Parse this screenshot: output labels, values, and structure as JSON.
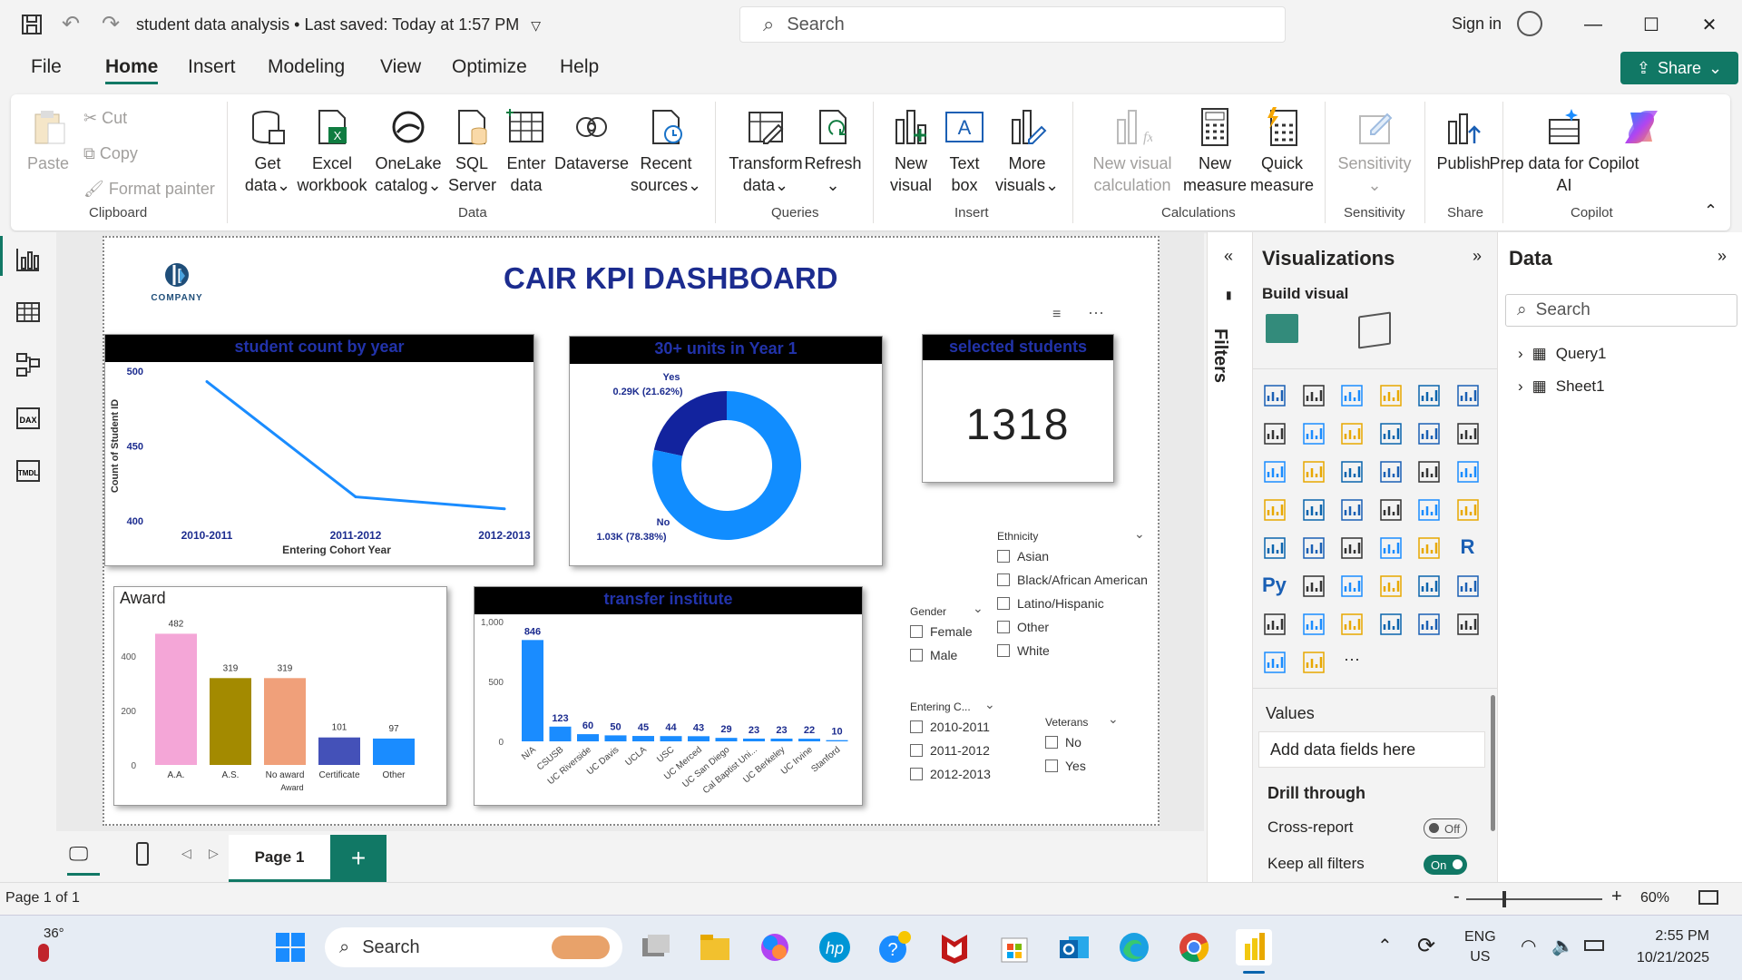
{
  "titlebar": {
    "doc_title": "student data analysis",
    "saved_status": "Last saved: Today at 1:57 PM",
    "search_placeholder": "Search",
    "sign_in": "Sign in"
  },
  "menu": [
    "File",
    "Home",
    "Insert",
    "Modeling",
    "View",
    "Optimize",
    "Help"
  ],
  "share_label": "Share",
  "ribbon": {
    "clipboard": {
      "paste": "Paste",
      "cut": "Cut",
      "copy": "Copy",
      "format_painter": "Format painter",
      "group": "Clipboard"
    },
    "data": {
      "get_data": [
        "Get",
        "data"
      ],
      "excel": [
        "Excel",
        "workbook"
      ],
      "onelake": [
        "OneLake",
        "catalog"
      ],
      "sql": [
        "SQL",
        "Server"
      ],
      "enter": [
        "Enter",
        "data"
      ],
      "dataverse": [
        "Dataverse"
      ],
      "recent": [
        "Recent",
        "sources"
      ],
      "group": "Data"
    },
    "queries": {
      "transform": [
        "Transform",
        "data"
      ],
      "refresh": [
        "Refresh"
      ],
      "group": "Queries"
    },
    "insert": {
      "new_visual": [
        "New",
        "visual"
      ],
      "text_box": [
        "Text",
        "box"
      ],
      "more_visuals": [
        "More",
        "visuals"
      ],
      "group": "Insert"
    },
    "calculations": {
      "new_visual_calc": [
        "New visual",
        "calculation"
      ],
      "new_measure": [
        "New",
        "measure"
      ],
      "quick_measure": [
        "Quick",
        "measure"
      ],
      "group": "Calculations"
    },
    "sensitivity": {
      "label": "Sensitivity",
      "group": "Sensitivity"
    },
    "share": {
      "publish": "Publish",
      "group": "Share"
    },
    "copilot": {
      "prep": [
        "Prep data for Copilot",
        "AI"
      ],
      "group": "Copilot"
    }
  },
  "report": {
    "logo_text": "COMPANY",
    "title": "CAIR KPI DASHBOARD",
    "kpi_title": "selected students",
    "kpi_value": "1318"
  },
  "chart_data": [
    {
      "type": "line",
      "title": "student count by year",
      "xlabel": "Entering Cohort Year",
      "ylabel": "Count of Student ID",
      "categories": [
        "2010-2011",
        "2011-2012",
        "2012-2013"
      ],
      "values": [
        493,
        416,
        408
      ],
      "ylim": [
        400,
        500
      ],
      "yticks": [
        400,
        450,
        500
      ],
      "color": "#1a8cff"
    },
    {
      "type": "pie",
      "title": "30+ units in Year 1",
      "labels": [
        "Yes",
        "No"
      ],
      "values": [
        21.62,
        78.38
      ],
      "data_labels": [
        "0.29K (21.62%)",
        "1.03K (78.38%)"
      ],
      "colors": [
        "#12239e",
        "#118dff"
      ]
    },
    {
      "type": "bar",
      "title": "Award",
      "xlabel": "Award",
      "categories": [
        "A.A.",
        "A.S.",
        "No award",
        "Certificate",
        "Other"
      ],
      "values": [
        482,
        319,
        319,
        101,
        97
      ],
      "colors": [
        "#f4a6d7",
        "#a38a00",
        "#f0a07a",
        "#4451b8",
        "#1a8cff"
      ],
      "ylim": [
        0,
        500
      ],
      "yticks": [
        0,
        200,
        400
      ]
    },
    {
      "type": "bar",
      "title": "transfer institute",
      "categories": [
        "N/A",
        "CSUSB",
        "UC Riverside",
        "UC Davis",
        "UCLA",
        "USC",
        "UC Merced",
        "UC San Diego",
        "Cal Baptist Uni...",
        "UC Berkeley",
        "UC Irvine",
        "Stanford"
      ],
      "values": [
        846,
        123,
        60,
        50,
        45,
        44,
        43,
        29,
        23,
        23,
        22,
        10
      ],
      "yticks": [
        0,
        500,
        1000
      ],
      "ytick_labels": [
        "0",
        "500",
        "1,000"
      ],
      "ylim": [
        0,
        1000
      ],
      "color": "#1a8cff"
    }
  ],
  "slicers": {
    "ethnicity": {
      "title": "Ethnicity",
      "items": [
        "Asian",
        "Black/African American",
        "Latino/Hispanic",
        "Other",
        "White"
      ]
    },
    "gender": {
      "title": "Gender",
      "items": [
        "Female",
        "Male"
      ]
    },
    "cohort": {
      "title": "Entering C...",
      "items": [
        "2010-2011",
        "2011-2012",
        "2012-2013"
      ]
    },
    "veterans": {
      "title": "Veterans",
      "items": [
        "No",
        "Yes"
      ]
    }
  },
  "filters_label": "Filters",
  "viz_pane": {
    "title": "Visualizations",
    "build_visual": "Build visual",
    "values": "Values",
    "add_fields": "Add data fields here",
    "drill_through": "Drill through",
    "cross_report": "Cross-report",
    "cross_report_state": "Off",
    "keep_filters": "Keep all filters",
    "keep_filters_state": "On"
  },
  "data_pane": {
    "title": "Data",
    "search_placeholder": "Search",
    "tables": [
      "Query1",
      "Sheet1"
    ]
  },
  "page_tab": "Page 1",
  "status": {
    "page": "Page 1 of 1",
    "zoom": "60%"
  },
  "taskbar": {
    "temp": "36°",
    "search": "Search",
    "lang": [
      "ENG",
      "US"
    ],
    "time": "2:55 PM",
    "date": "10/21/2025"
  }
}
